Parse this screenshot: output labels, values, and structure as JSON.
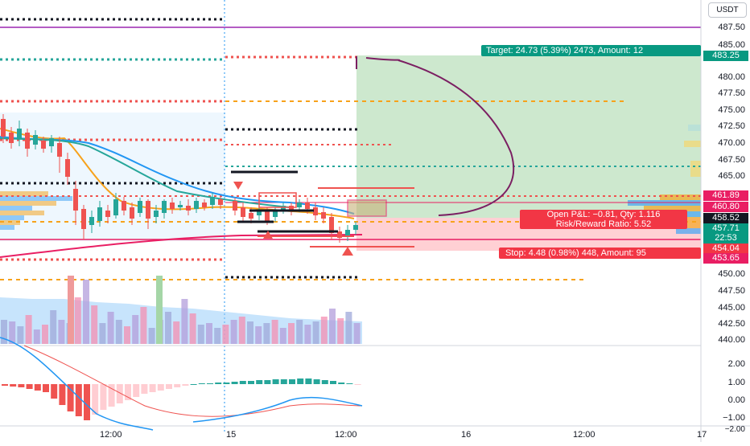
{
  "currency": "USDT",
  "price_axis": {
    "ticks": [
      "487.50",
      "485.00",
      "480.00",
      "477.50",
      "475.00",
      "472.50",
      "470.00",
      "467.50",
      "465.00",
      "450.00",
      "447.50",
      "445.00",
      "442.50",
      "440.00"
    ],
    "badges": [
      {
        "text": "483.25",
        "color": "#089981"
      },
      {
        "text": "461.89",
        "color": "#e91e63"
      },
      {
        "text": "460.80",
        "color": "#e91e63"
      },
      {
        "text": "458.52",
        "color": "#131722"
      },
      {
        "text": "457.71",
        "color": "#089981"
      },
      {
        "text": "22:53",
        "color": "#089981"
      },
      {
        "text": "454.04",
        "color": "#f23645"
      },
      {
        "text": "453.65",
        "color": "#e91e63"
      }
    ]
  },
  "indicator_axis": {
    "ticks": [
      "2.00",
      "1.00",
      "0.00",
      "−1.00",
      "−2.00"
    ]
  },
  "time_axis": {
    "ticks": [
      "12:00",
      "15",
      "12:00",
      "16",
      "12:00",
      "17"
    ]
  },
  "position": {
    "target_label": "Target: 24.73 (5.39%) 2473, Amount: 12",
    "open_pnl_label": "Open P&L: −0.81, Qty: 1.116",
    "risk_reward_label": "Risk/Reward Ratio: 5.52",
    "stop_label": "Stop: 4.48 (0.98%) 448, Amount: 95"
  },
  "colors": {
    "profit_zone": "#c8e6c9",
    "loss_zone": "#ffcdd2",
    "bull": "#26a69a",
    "bear": "#ef5350",
    "volume_area": "#90caf9",
    "ema_fast": "#f7a21b",
    "ema_slow": "#2196f3",
    "ma_long": "#e91e63",
    "drawing": "#7b1f62"
  }
}
